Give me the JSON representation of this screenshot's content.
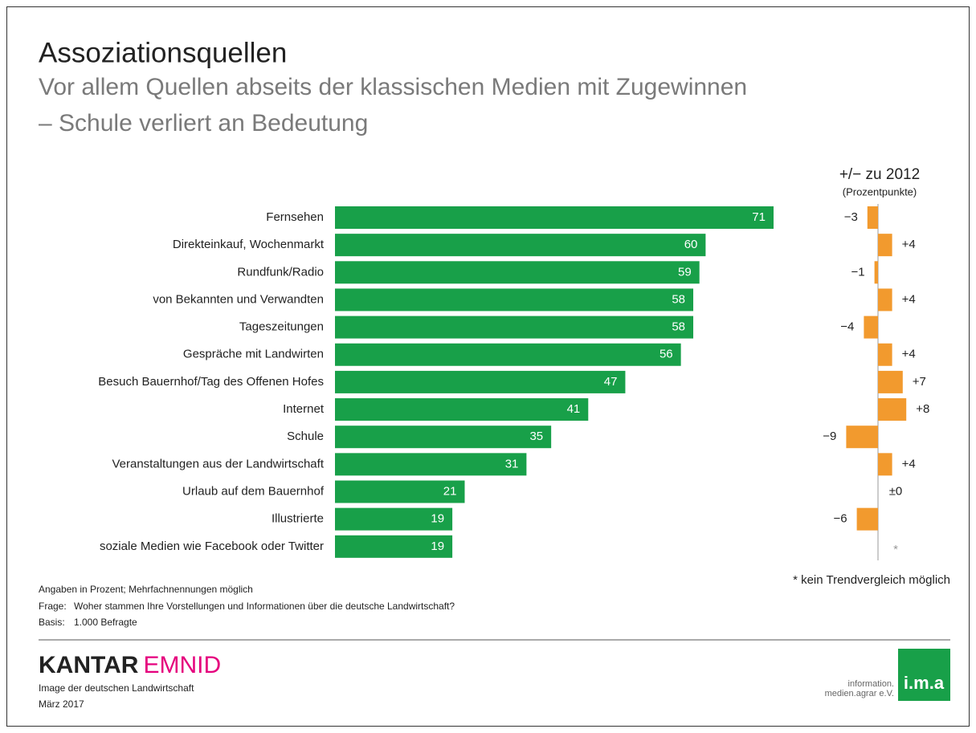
{
  "title": "Assoziationsquellen",
  "subtitle": [
    "Vor allem Quellen abseits der klassischen Medien mit Zugewinnen",
    "– Schule verliert an Bedeutung"
  ],
  "chart_data": [
    {
      "type": "bar",
      "orientation": "horizontal",
      "color": "#18a049",
      "categories": [
        "Fernsehen",
        "Direkteinkauf, Wochenmarkt",
        "Rundfunk/Radio",
        "von Bekannten und Verwandten",
        "Tageszeitungen",
        "Gespräche mit Landwirten",
        "Besuch Bauernhof/Tag des Offenen Hofes",
        "Internet",
        "Schule",
        "Veranstaltungen aus der Landwirtschaft",
        "Urlaub auf dem Bauernhof",
        "Illustrierte",
        "soziale Medien wie Facebook oder Twitter"
      ],
      "values": [
        71,
        60,
        59,
        58,
        58,
        56,
        47,
        41,
        35,
        31,
        21,
        19,
        19
      ]
    },
    {
      "type": "bar",
      "orientation": "horizontal",
      "color": "#f29a2e",
      "title": "+/− zu 2012",
      "subtitle": "(Prozentpunkte)",
      "values": [
        -3,
        4,
        -1,
        4,
        -4,
        4,
        7,
        8,
        -9,
        4,
        0,
        -6,
        null
      ],
      "value_labels": [
        "−3",
        "+4",
        "−1",
        "+4",
        "−4",
        "+4",
        "+7",
        "+8",
        "−9",
        "+4",
        "±0",
        "−6",
        "*"
      ]
    }
  ],
  "notes": {
    "unit": "Angaben in Prozent; Mehrfachnennungen möglich",
    "question_label": "Frage:",
    "question": "Woher stammen Ihre Vorstellungen und Informationen über die deutsche Landwirtschaft?",
    "base_label": "Basis:",
    "base": "1.000 Befragte",
    "asterisk": "* kein Trendvergleich möglich"
  },
  "footer": {
    "brand_1": "KANTAR",
    "brand_2": "EMNID",
    "study": "Image der deutschen Landwirtschaft",
    "date": "März 2017",
    "logo_text_1": "information.",
    "logo_text_2": "medien.agrar e.V.",
    "logo": "i.m.a"
  }
}
